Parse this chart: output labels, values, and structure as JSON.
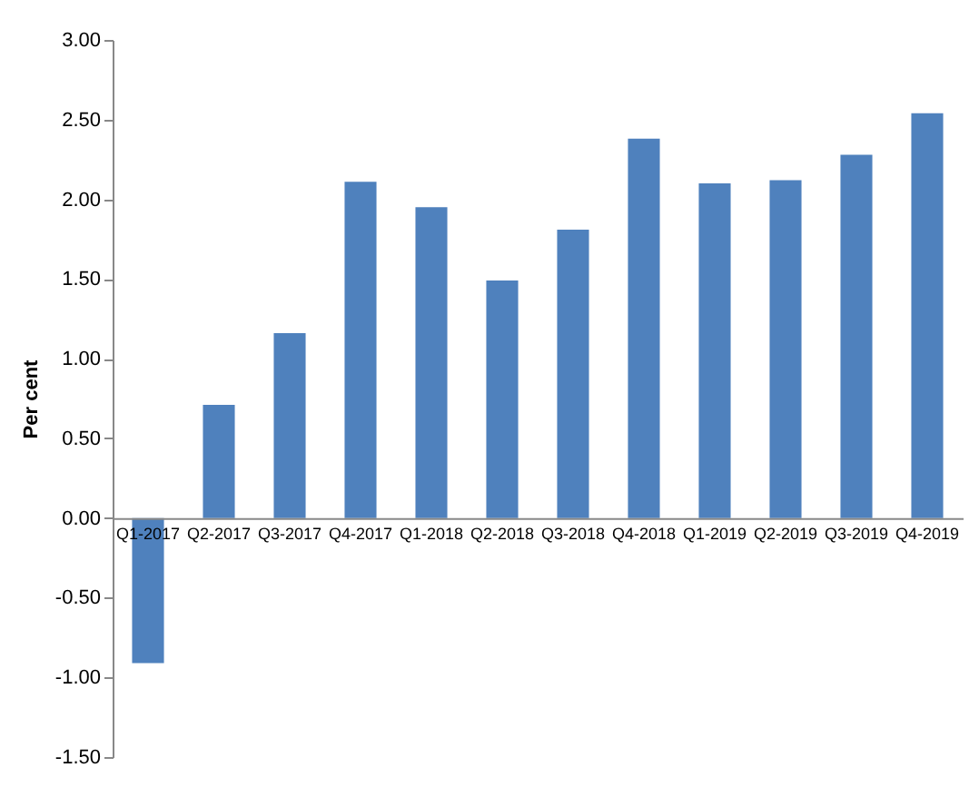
{
  "chart_data": {
    "type": "bar",
    "ylabel": "Per cent",
    "categories": [
      "Q1-2017",
      "Q2-2017",
      "Q3-2017",
      "Q4-2017",
      "Q1-2018",
      "Q2-2018",
      "Q3-2018",
      "Q4-2018",
      "Q1-2019",
      "Q2-2019",
      "Q3-2019",
      "Q4-2019"
    ],
    "values": [
      -0.91,
      0.71,
      1.16,
      2.11,
      1.95,
      1.49,
      1.81,
      2.38,
      2.1,
      2.12,
      2.28,
      2.54
    ],
    "color": "#4f81bd",
    "ylim": [
      -1.5,
      3
    ],
    "yticks": [
      {
        "value": -1.5,
        "label": "-1.50"
      },
      {
        "value": -1,
        "label": "-1.00"
      },
      {
        "value": -0.5,
        "label": "-0.50"
      },
      {
        "value": 0,
        "label": "0.00"
      },
      {
        "value": 0.5,
        "label": "0.50"
      },
      {
        "value": 1,
        "label": "1.00"
      },
      {
        "value": 1.5,
        "label": "1.50"
      },
      {
        "value": 2,
        "label": "2.00"
      },
      {
        "value": 2.5,
        "label": "2.50"
      },
      {
        "value": 3,
        "label": "3.00"
      }
    ],
    "grid": false
  }
}
